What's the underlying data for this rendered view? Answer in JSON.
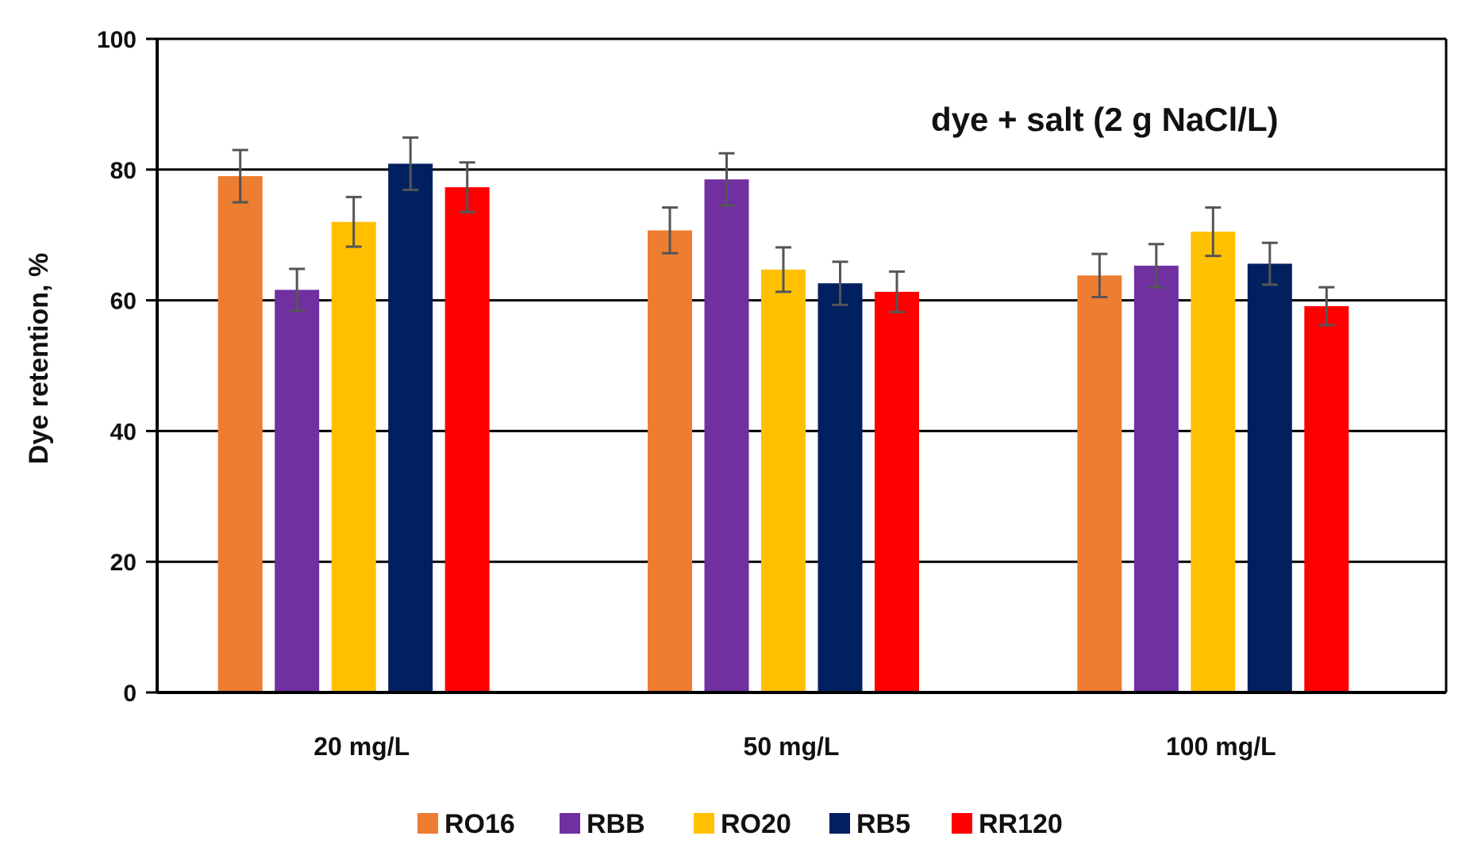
{
  "chart_data": {
    "type": "bar",
    "title": "",
    "annotation": "dye  + salt (2 g NaCl/L)",
    "xlabel": "",
    "ylabel": "Dye retention, %",
    "ylim": [
      0,
      100
    ],
    "yticks": [
      0,
      20,
      40,
      60,
      80,
      100
    ],
    "grid": true,
    "legend_position": "bottom",
    "categories": [
      "20 mg/L",
      "50 mg/L",
      "100 mg/L"
    ],
    "series": [
      {
        "name": "RO16",
        "color": "#ED7D31",
        "values": [
          79,
          70.7,
          63.8
        ],
        "errors": [
          4,
          3.5,
          3.3
        ]
      },
      {
        "name": "RBB",
        "color": "#7030A0",
        "values": [
          61.6,
          78.5,
          65.3
        ],
        "errors": [
          3.2,
          4,
          3.3
        ]
      },
      {
        "name": "RO20",
        "color": "#FFC000",
        "values": [
          72,
          64.7,
          70.5
        ],
        "errors": [
          3.8,
          3.4,
          3.7
        ]
      },
      {
        "name": "RB5",
        "color": "#002060",
        "values": [
          80.9,
          62.6,
          65.6
        ],
        "errors": [
          4,
          3.3,
          3.2
        ]
      },
      {
        "name": "RR120",
        "color": "#FF0000",
        "values": [
          77.3,
          61.3,
          59.1
        ],
        "errors": [
          3.8,
          3.1,
          2.9
        ]
      }
    ]
  }
}
